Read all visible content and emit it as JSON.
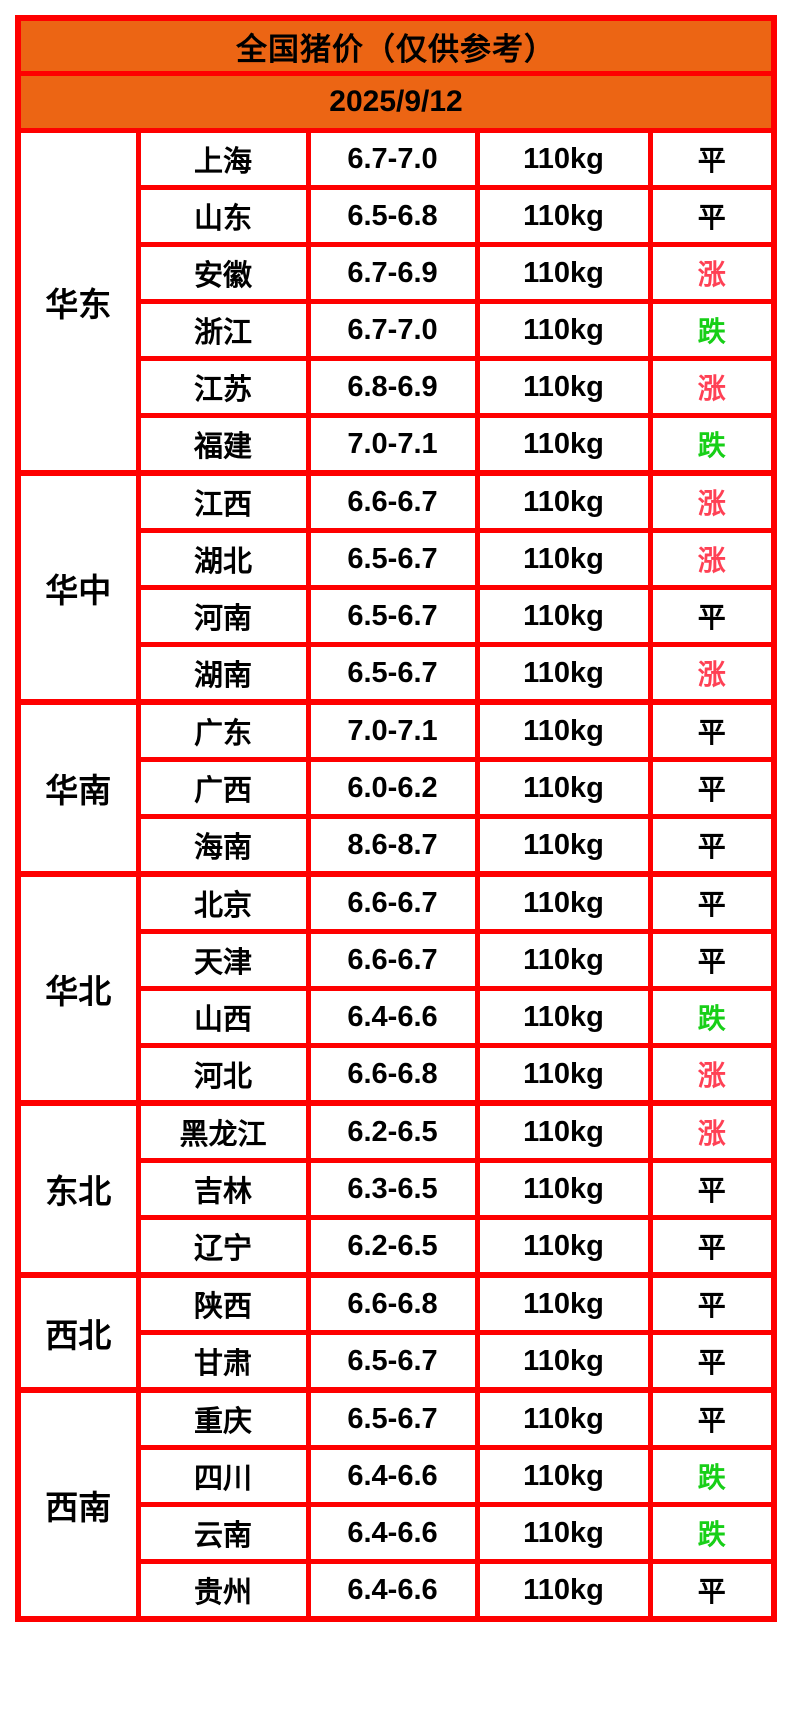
{
  "header": {
    "title": "全国猪价（仅供参考）",
    "date": "2025/9/12"
  },
  "colors": {
    "header_bg": "#EC6514",
    "border": "#FE0000",
    "rise": "#FF4155",
    "fall": "#17CF17",
    "flat": "#000000"
  },
  "regions": [
    {
      "name": "华东",
      "rows": [
        {
          "province": "上海",
          "price": "6.7-7.0",
          "weight": "110kg",
          "status": "平",
          "trend": "flat"
        },
        {
          "province": "山东",
          "price": "6.5-6.8",
          "weight": "110kg",
          "status": "平",
          "trend": "flat"
        },
        {
          "province": "安徽",
          "price": "6.7-6.9",
          "weight": "110kg",
          "status": "涨",
          "trend": "rise"
        },
        {
          "province": "浙江",
          "price": "6.7-7.0",
          "weight": "110kg",
          "status": "跌",
          "trend": "fall"
        },
        {
          "province": "江苏",
          "price": "6.8-6.9",
          "weight": "110kg",
          "status": "涨",
          "trend": "rise"
        },
        {
          "province": "福建",
          "price": "7.0-7.1",
          "weight": "110kg",
          "status": "跌",
          "trend": "fall"
        }
      ]
    },
    {
      "name": "华中",
      "rows": [
        {
          "province": "江西",
          "price": "6.6-6.7",
          "weight": "110kg",
          "status": "涨",
          "trend": "rise"
        },
        {
          "province": "湖北",
          "price": "6.5-6.7",
          "weight": "110kg",
          "status": "涨",
          "trend": "rise"
        },
        {
          "province": "河南",
          "price": "6.5-6.7",
          "weight": "110kg",
          "status": "平",
          "trend": "flat"
        },
        {
          "province": "湖南",
          "price": "6.5-6.7",
          "weight": "110kg",
          "status": "涨",
          "trend": "rise"
        }
      ]
    },
    {
      "name": "华南",
      "rows": [
        {
          "province": "广东",
          "price": "7.0-7.1",
          "weight": "110kg",
          "status": "平",
          "trend": "flat"
        },
        {
          "province": "广西",
          "price": "6.0-6.2",
          "weight": "110kg",
          "status": "平",
          "trend": "flat"
        },
        {
          "province": "海南",
          "price": "8.6-8.7",
          "weight": "110kg",
          "status": "平",
          "trend": "flat"
        }
      ]
    },
    {
      "name": "华北",
      "rows": [
        {
          "province": "北京",
          "price": "6.6-6.7",
          "weight": "110kg",
          "status": "平",
          "trend": "flat"
        },
        {
          "province": "天津",
          "price": "6.6-6.7",
          "weight": "110kg",
          "status": "平",
          "trend": "flat"
        },
        {
          "province": "山西",
          "price": "6.4-6.6",
          "weight": "110kg",
          "status": "跌",
          "trend": "fall"
        },
        {
          "province": "河北",
          "price": "6.6-6.8",
          "weight": "110kg",
          "status": "涨",
          "trend": "rise"
        }
      ]
    },
    {
      "name": "东北",
      "rows": [
        {
          "province": "黑龙江",
          "price": "6.2-6.5",
          "weight": "110kg",
          "status": "涨",
          "trend": "rise"
        },
        {
          "province": "吉林",
          "price": "6.3-6.5",
          "weight": "110kg",
          "status": "平",
          "trend": "flat"
        },
        {
          "province": "辽宁",
          "price": "6.2-6.5",
          "weight": "110kg",
          "status": "平",
          "trend": "flat"
        }
      ]
    },
    {
      "name": "西北",
      "rows": [
        {
          "province": "陕西",
          "price": "6.6-6.8",
          "weight": "110kg",
          "status": "平",
          "trend": "flat"
        },
        {
          "province": "甘肃",
          "price": "6.5-6.7",
          "weight": "110kg",
          "status": "平",
          "trend": "flat"
        }
      ]
    },
    {
      "name": "西南",
      "rows": [
        {
          "province": "重庆",
          "price": "6.5-6.7",
          "weight": "110kg",
          "status": "平",
          "trend": "flat"
        },
        {
          "province": "四川",
          "price": "6.4-6.6",
          "weight": "110kg",
          "status": "跌",
          "trend": "fall"
        },
        {
          "province": "云南",
          "price": "6.4-6.6",
          "weight": "110kg",
          "status": "跌",
          "trend": "fall"
        },
        {
          "province": "贵州",
          "price": "6.4-6.6",
          "weight": "110kg",
          "status": "平",
          "trend": "flat"
        }
      ]
    }
  ]
}
